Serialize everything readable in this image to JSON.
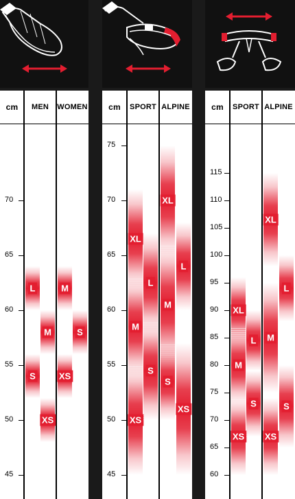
{
  "colors": {
    "accent": "#e31e30",
    "icon_bg": "#111111",
    "frame": "#1a1a1a"
  },
  "chart_data": [
    {
      "type": "table",
      "icon": "leg-loop-icon",
      "unit_label": "cm",
      "columns": [
        "MEN",
        "WOMEN"
      ],
      "axis": {
        "min": 45,
        "max": 70,
        "ticks": [
          45,
          50,
          55,
          60,
          65,
          70
        ]
      },
      "sizes": [
        {
          "column": "MEN",
          "label": "L",
          "range": [
            60,
            64
          ]
        },
        {
          "column": "MEN",
          "label": "S",
          "range": [
            52,
            56
          ]
        },
        {
          "column": "WOMEN",
          "label": "M",
          "range": [
            60,
            64
          ]
        },
        {
          "column": "WOMEN",
          "label": "XS",
          "range": [
            52,
            56
          ]
        },
        {
          "column": "MEN",
          "label": "M",
          "range": [
            56,
            60
          ]
        },
        {
          "column": "MEN",
          "label": "XS",
          "range": [
            48,
            52
          ]
        },
        {
          "column": "WOMEN",
          "label": "S",
          "range": [
            56,
            60
          ]
        }
      ]
    },
    {
      "type": "table",
      "icon": "waist-belt-icon",
      "unit_label": "cm",
      "columns": [
        "SPORT",
        "ALPINE"
      ],
      "axis": {
        "min": 45,
        "max": 75,
        "ticks": [
          45,
          50,
          55,
          60,
          65,
          70,
          75
        ]
      },
      "sizes": [
        {
          "column": "SPORT",
          "label": "XL",
          "range": [
            62,
            71
          ]
        },
        {
          "column": "SPORT",
          "label": "M",
          "range": [
            54,
            63
          ]
        },
        {
          "column": "SPORT",
          "label": "XS",
          "range": [
            45,
            55
          ]
        },
        {
          "column": "SPORT",
          "label": "L",
          "range": [
            58,
            67
          ]
        },
        {
          "column": "SPORT",
          "label": "S",
          "range": [
            50,
            59
          ]
        },
        {
          "column": "ALPINE",
          "label": "XL",
          "range": [
            65,
            75
          ]
        },
        {
          "column": "ALPINE",
          "label": "M",
          "range": [
            55,
            66
          ]
        },
        {
          "column": "ALPINE",
          "label": "XS",
          "range": [
            45,
            57
          ]
        },
        {
          "column": "ALPINE",
          "label": "L",
          "range": [
            60,
            68
          ]
        },
        {
          "column": "ALPINE",
          "label": "S",
          "range": [
            50,
            57
          ]
        }
      ]
    },
    {
      "type": "table",
      "icon": "full-harness-icon",
      "unit_label": "cm",
      "columns": [
        "SPORT",
        "ALPINE"
      ],
      "axis": {
        "min": 60,
        "max": 115,
        "ticks": [
          60,
          65,
          70,
          75,
          80,
          85,
          90,
          95,
          100,
          105,
          110,
          115
        ]
      },
      "sizes": [
        {
          "column": "SPORT",
          "label": "XL",
          "range": [
            84,
            96
          ]
        },
        {
          "column": "SPORT",
          "label": "M",
          "range": [
            73,
            87
          ]
        },
        {
          "column": "SPORT",
          "label": "XS",
          "range": [
            60,
            74
          ]
        },
        {
          "column": "SPORT",
          "label": "L",
          "range": [
            79,
            90
          ]
        },
        {
          "column": "SPORT",
          "label": "S",
          "range": [
            67,
            79
          ]
        },
        {
          "column": "ALPINE",
          "label": "XL",
          "range": [
            98,
            115
          ]
        },
        {
          "column": "ALPINE",
          "label": "M",
          "range": [
            75,
            95
          ]
        },
        {
          "column": "ALPINE",
          "label": "XS",
          "range": [
            60,
            74
          ]
        },
        {
          "column": "ALPINE",
          "label": "L",
          "range": [
            88,
            100
          ]
        },
        {
          "column": "ALPINE",
          "label": "S",
          "range": [
            65,
            80
          ]
        }
      ]
    }
  ]
}
